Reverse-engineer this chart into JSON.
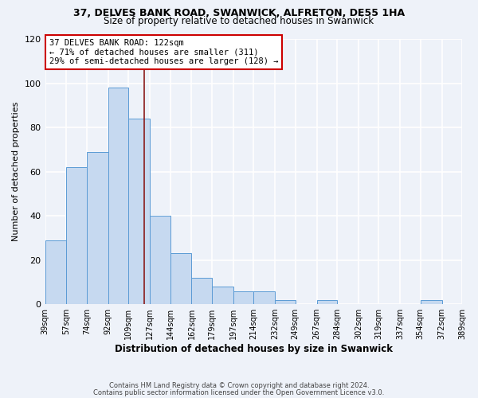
{
  "title": "37, DELVES BANK ROAD, SWANWICK, ALFRETON, DE55 1HA",
  "subtitle": "Size of property relative to detached houses in Swanwick",
  "xlabel": "Distribution of detached houses by size in Swanwick",
  "ylabel": "Number of detached properties",
  "bar_edges": [
    39,
    57,
    74,
    92,
    109,
    127,
    144,
    162,
    179,
    197,
    214,
    232,
    249,
    267,
    284,
    302,
    319,
    337,
    354,
    372,
    389
  ],
  "bar_heights": [
    29,
    62,
    69,
    98,
    84,
    40,
    23,
    12,
    8,
    6,
    6,
    2,
    0,
    2,
    0,
    0,
    0,
    0,
    2,
    0
  ],
  "bar_color": "#c6d9f0",
  "bar_edge_color": "#5b9bd5",
  "vline_x": 122,
  "vline_color": "#8b1a1a",
  "annotation_line1": "37 DELVES BANK ROAD: 122sqm",
  "annotation_line2": "← 71% of detached houses are smaller (311)",
  "annotation_line3": "29% of semi-detached houses are larger (128) →",
  "annotation_box_color": "white",
  "annotation_box_edge": "#cc0000",
  "ylim": [
    0,
    120
  ],
  "tick_labels": [
    "39sqm",
    "57sqm",
    "74sqm",
    "92sqm",
    "109sqm",
    "127sqm",
    "144sqm",
    "162sqm",
    "179sqm",
    "197sqm",
    "214sqm",
    "232sqm",
    "249sqm",
    "267sqm",
    "284sqm",
    "302sqm",
    "319sqm",
    "337sqm",
    "354sqm",
    "372sqm",
    "389sqm"
  ],
  "footer_line1": "Contains HM Land Registry data © Crown copyright and database right 2024.",
  "footer_line2": "Contains public sector information licensed under the Open Government Licence v3.0.",
  "background_color": "#eef2f9",
  "grid_color": "white"
}
